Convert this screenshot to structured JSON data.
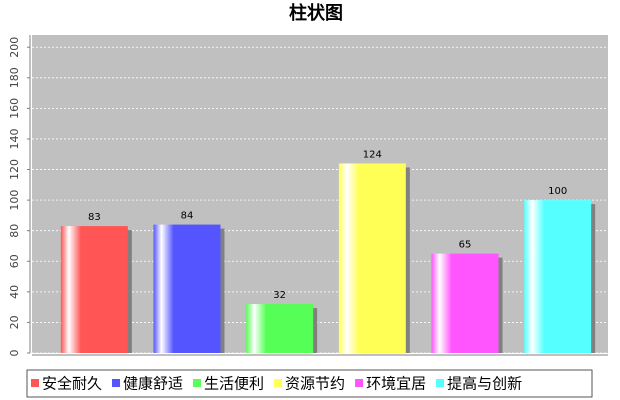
{
  "chart_data": {
    "type": "bar",
    "title": "柱状图",
    "categories": [
      "安全耐久",
      "健康舒适",
      "生活便利",
      "资源节约",
      "环境宜居",
      "提高与创新"
    ],
    "values": [
      83,
      84,
      32,
      124,
      65,
      100
    ],
    "colors": [
      "#ff5555",
      "#5555ff",
      "#55ff55",
      "#ffff55",
      "#ff55ff",
      "#55ffff"
    ],
    "ylim": [
      0,
      208
    ],
    "yticks": [
      0,
      20,
      40,
      60,
      80,
      100,
      120,
      140,
      160,
      180,
      200
    ],
    "grid": true
  }
}
